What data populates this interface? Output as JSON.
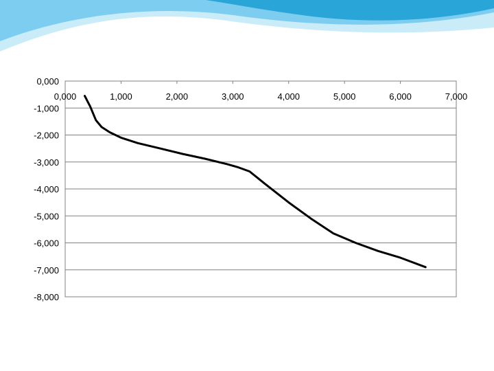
{
  "theme": {
    "wave_dark": "#2aa5d8",
    "wave_mid": "#7dcdf0",
    "wave_light": "#c9ecf8",
    "line_color": "#000000",
    "grid_color": "#808080"
  },
  "chart_data": {
    "type": "line",
    "title": "",
    "xlabel": "",
    "ylabel": "",
    "xlim": [
      0,
      7
    ],
    "ylim": [
      -8,
      0
    ],
    "x_tick_labels": [
      "0,000",
      "1,000",
      "2,000",
      "3,000",
      "4,000",
      "5,000",
      "6,000",
      "7,000"
    ],
    "y_tick_labels": [
      "0,000",
      "-1,000",
      "-2,000",
      "-3,000",
      "-4,000",
      "-5,000",
      "-6,000",
      "-7,000",
      "-8,000"
    ],
    "grid": "horizontal",
    "legend": "none",
    "series": [
      {
        "x": [
          0.35,
          0.45,
          0.55,
          0.65,
          0.8,
          1.0,
          1.3,
          1.7,
          2.1,
          2.5,
          2.9,
          3.1,
          3.3,
          3.6,
          4.0,
          4.4,
          4.8,
          5.2,
          5.6,
          6.0,
          6.45
        ],
        "y": [
          -0.55,
          -0.95,
          -1.45,
          -1.7,
          -1.9,
          -2.1,
          -2.3,
          -2.5,
          -2.7,
          -2.88,
          -3.08,
          -3.2,
          -3.35,
          -3.85,
          -4.5,
          -5.1,
          -5.65,
          -6.0,
          -6.3,
          -6.55,
          -6.9
        ]
      }
    ]
  }
}
